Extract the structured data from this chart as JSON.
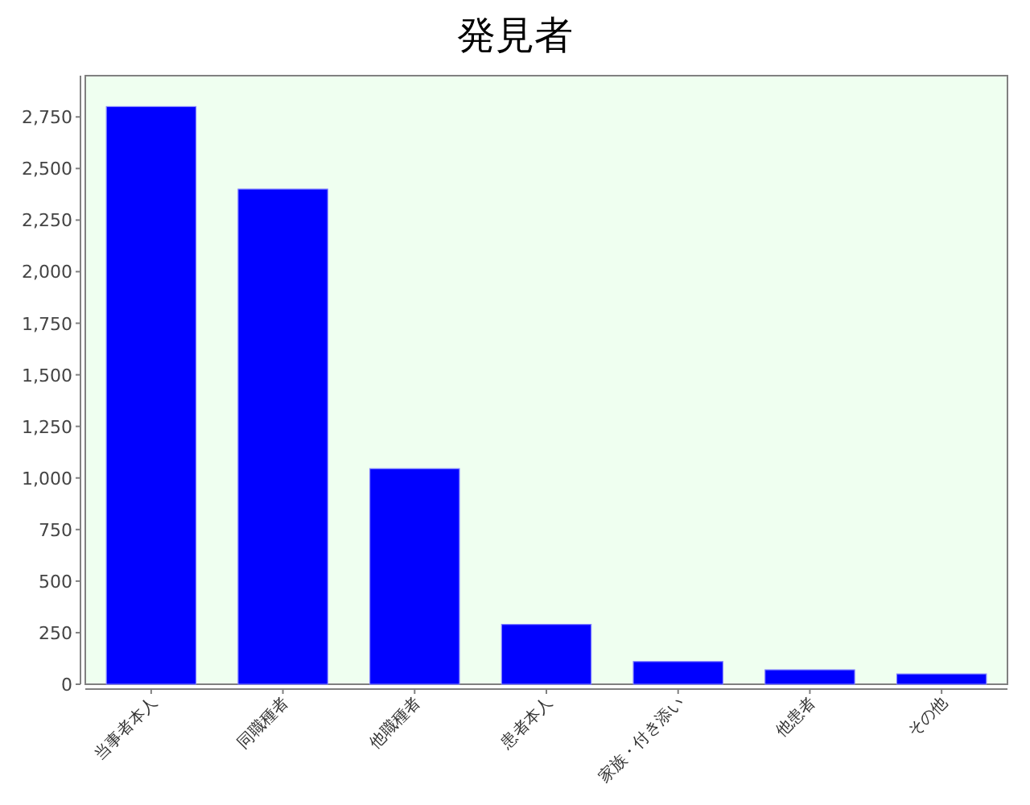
{
  "chart_data": {
    "type": "bar",
    "title": "発見者",
    "categories": [
      "当事者本人",
      "同職種者",
      "他職種者",
      "患者本人",
      "家族・付き添い",
      "他患者",
      "その他"
    ],
    "values": [
      2800,
      2400,
      1045,
      290,
      110,
      70,
      50
    ],
    "color": "#0000ff",
    "ylim": [
      0,
      2950
    ],
    "yticks": [
      {
        "value": 0,
        "label": "0"
      },
      {
        "value": 250,
        "label": "250"
      },
      {
        "value": 500,
        "label": "500"
      },
      {
        "value": 750,
        "label": "750"
      },
      {
        "value": 1000,
        "label": "1,000"
      },
      {
        "value": 1250,
        "label": "1,250"
      },
      {
        "value": 1500,
        "label": "1,500"
      },
      {
        "value": 1750,
        "label": "1,750"
      },
      {
        "value": 2000,
        "label": "2,000"
      },
      {
        "value": 2250,
        "label": "2,250"
      },
      {
        "value": 2500,
        "label": "2,500"
      },
      {
        "value": 2750,
        "label": "2,750"
      }
    ],
    "grid": false
  }
}
